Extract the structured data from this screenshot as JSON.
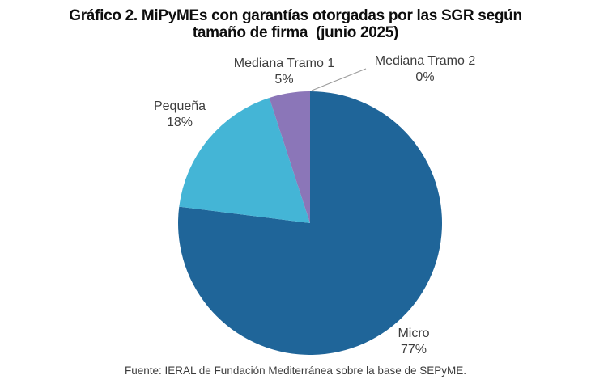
{
  "page": {
    "title_lines": [
      "Gráfico 2. MiPyMEs con garantías otorgadas por las SGR según",
      "tamaño de firma  (junio 2025)"
    ],
    "source": "Fuente: IERAL de Fundación Mediterránea sobre la base de SEPyME."
  },
  "chart_data": {
    "type": "pie",
    "title": "Gráfico 2. MiPyMEs con garantías otorgadas por las SGR según tamaño de firma (junio 2025)",
    "start_angle_deg": 0,
    "direction": "clockwise",
    "legend": "none",
    "source": "Fuente: IERAL de Fundación Mediterránea sobre la base de SEPyME.",
    "slices": [
      {
        "label": "Micro",
        "value_pct": 77,
        "display": "77%",
        "color": "#1F6599"
      },
      {
        "label": "Pequeña",
        "value_pct": 18,
        "display": "18%",
        "color": "#44B5D6"
      },
      {
        "label": "Mediana Tramo 1",
        "value_pct": 5,
        "display": "5%",
        "color": "#8B76B8"
      },
      {
        "label": "Mediana Tramo 2",
        "value_pct": 0,
        "display": "0%",
        "color": "#1F6599"
      }
    ]
  }
}
